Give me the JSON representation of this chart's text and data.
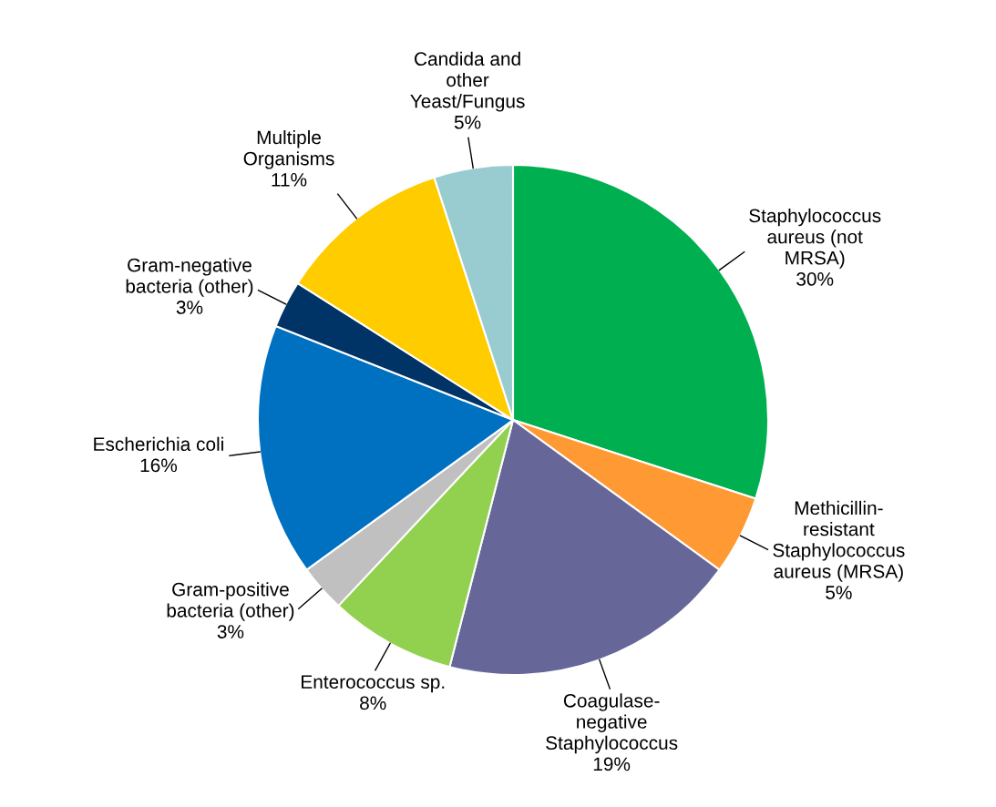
{
  "chart_data": {
    "type": "pie",
    "categories": [
      "Staphylococcus\naureus (not\nMRSA)",
      "Methicillin-\nresistant\nStaphylococcus\naureus (MRSA)",
      "Coagulase-\nnegative\nStaphylococcus",
      "Enterococcus sp.",
      "Gram-positive\nbacteria (other)",
      "Escherichia coli",
      "Gram-negative\nbacteria (other)",
      "Multiple\nOrganisms",
      "Candida and\nother\nYeast/Fungus"
    ],
    "values": [
      30,
      5,
      19,
      8,
      3,
      16,
      3,
      11,
      5
    ],
    "value_labels": [
      "30%",
      "5%",
      "19%",
      "8%",
      "3%",
      "16%",
      "3%",
      "11%",
      "5%"
    ],
    "colors": [
      "#00b050",
      "#ff9933",
      "#666699",
      "#92d050",
      "#c0c0c0",
      "#0070c0",
      "#003366",
      "#ffcc00",
      "#99ccd0"
    ],
    "legend": false
  }
}
